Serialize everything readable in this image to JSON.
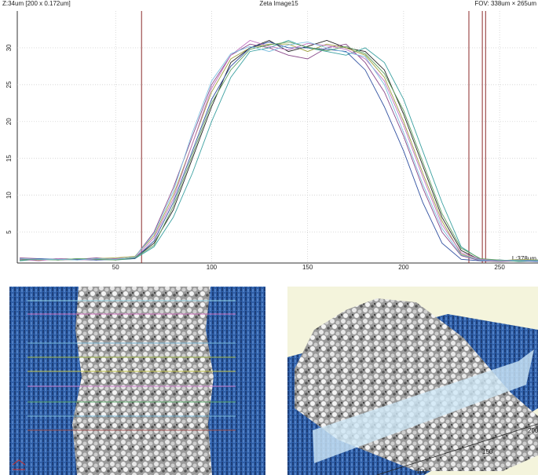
{
  "chart_data": {
    "type": "line",
    "title": "Zeta Image15",
    "header_left": "Z:34um [200 x 0.172um]",
    "header_right": "FOV: 338um × 265um",
    "length_label": "L:378um",
    "x": [
      0,
      10,
      20,
      30,
      40,
      50,
      60,
      70,
      80,
      90,
      100,
      110,
      120,
      130,
      140,
      150,
      160,
      170,
      180,
      190,
      200,
      210,
      220,
      230,
      240,
      250,
      260,
      270
    ],
    "series": [
      {
        "color": "#222222",
        "values": [
          1.3,
          1.2,
          1.4,
          1.3,
          1.2,
          1.4,
          1.5,
          3.5,
          8,
          15,
          22,
          28,
          30,
          31,
          29.5,
          30.2,
          31,
          30,
          29.5,
          27,
          21,
          14,
          7,
          2.5,
          1.2,
          1.1,
          1.2,
          1.1
        ]
      },
      {
        "color": "#8a4a8a",
        "values": [
          1.5,
          1.4,
          1.2,
          1.3,
          1.5,
          1.3,
          1.6,
          5,
          11,
          18,
          25,
          29,
          30.5,
          30,
          29,
          28.5,
          30,
          30.5,
          28,
          24,
          18,
          11,
          5,
          1.8,
          1.1,
          1,
          1.1,
          1.2
        ]
      },
      {
        "color": "#3aa0a0",
        "values": [
          1.1,
          1.3,
          1.2,
          1.4,
          1.3,
          1.2,
          1.4,
          3,
          7,
          13,
          20,
          26,
          29.5,
          30,
          31,
          30,
          29.5,
          29,
          30,
          28,
          23,
          16,
          9,
          3,
          1.3,
          1.2,
          1,
          1.1
        ]
      },
      {
        "color": "#a0a040",
        "values": [
          1.4,
          1.2,
          1.3,
          1.2,
          1.4,
          1.5,
          1.7,
          4.5,
          10,
          17,
          24,
          28.5,
          30,
          30.5,
          30.5,
          29.5,
          30.5,
          30,
          29,
          26,
          20,
          13,
          6.5,
          2,
          1.2,
          1.1,
          1.3,
          1.2
        ]
      },
      {
        "color": "#3050a0",
        "values": [
          1.2,
          1.4,
          1.3,
          1.3,
          1.2,
          1.3,
          1.4,
          3.8,
          9,
          16,
          23,
          27.5,
          30,
          30.8,
          30,
          30,
          29.8,
          29.5,
          27,
          22,
          16,
          9,
          3.5,
          1.3,
          1.1,
          1.2,
          1.1,
          1
        ]
      },
      {
        "color": "#c070c0",
        "values": [
          1.3,
          1.1,
          1.4,
          1.2,
          1.3,
          1.4,
          1.5,
          4.2,
          9.5,
          17,
          24.5,
          29,
          31,
          30.2,
          29.7,
          30.6,
          30.3,
          29.8,
          28.5,
          25.5,
          19.5,
          12.5,
          6,
          2.2,
          1.3,
          1.1,
          1.2,
          1.1
        ]
      },
      {
        "color": "#60a060",
        "values": [
          1.2,
          1.3,
          1.2,
          1.4,
          1.3,
          1.2,
          1.5,
          3.2,
          8.5,
          15.5,
          22.5,
          27,
          29.8,
          30.4,
          30.8,
          30.1,
          29.6,
          30.2,
          29.2,
          26.5,
          21.5,
          14.5,
          7.5,
          2.8,
          1.4,
          1.2,
          1.1,
          1.2
        ]
      },
      {
        "color": "#80c0e0",
        "values": [
          1.4,
          1.3,
          1.3,
          1.2,
          1.4,
          1.3,
          1.6,
          4.8,
          10.5,
          18.5,
          25.5,
          29.2,
          30.2,
          29.5,
          30.4,
          30.8,
          30,
          29.4,
          28.8,
          25,
          18.5,
          11.5,
          5.5,
          1.9,
          1.2,
          1.1,
          1.2,
          1.1
        ]
      }
    ],
    "markers": {
      "color": "#8b2a2a",
      "values": [
        63.5,
        234,
        241,
        242.7
      ]
    },
    "xlim": [
      0,
      270
    ],
    "xticks": [
      50,
      100,
      150,
      200,
      250
    ],
    "ylim": [
      0.8,
      35
    ],
    "yticks": [
      5,
      10,
      15,
      20,
      25,
      30
    ],
    "grid": true
  },
  "surface_view": {
    "axis_labels": [
      "100",
      "150",
      "200"
    ]
  }
}
